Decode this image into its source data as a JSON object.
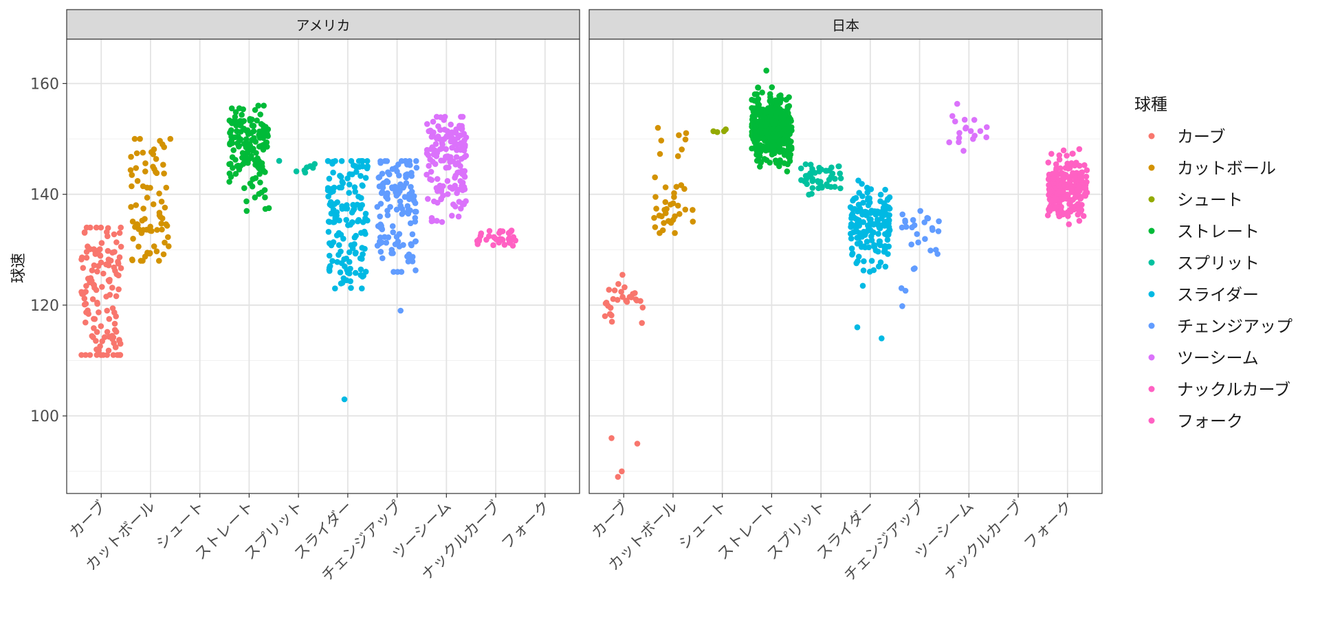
{
  "chart_data": {
    "type": "scatter",
    "ylabel": "球速",
    "xlabel": "",
    "ylim": [
      86,
      168
    ],
    "yticks": [
      100,
      120,
      140,
      160
    ],
    "categories": [
      "カーブ",
      "カットボール",
      "シュート",
      "ストレート",
      "スプリット",
      "スライダー",
      "チェンジアップ",
      "ツーシーム",
      "ナックルカーブ",
      "フォーク"
    ],
    "legend": {
      "title": "球種",
      "placement": "right",
      "items": [
        {
          "name": "カーブ",
          "color": "#F8766D"
        },
        {
          "name": "カットボール",
          "color": "#D39200"
        },
        {
          "name": "シュート",
          "color": "#93AA00"
        },
        {
          "name": "ストレート",
          "color": "#00BA38"
        },
        {
          "name": "スプリット",
          "color": "#00C19F"
        },
        {
          "name": "スライダー",
          "color": "#00B9E3"
        },
        {
          "name": "チェンジアップ",
          "color": "#619CFF"
        },
        {
          "name": "ツーシーム",
          "color": "#DB72FB"
        },
        {
          "name": "ナックルカーブ",
          "color": "#FF61C3"
        },
        {
          "name": "フォーク",
          "color": "#FF61C3"
        }
      ]
    },
    "grid": true,
    "panels": [
      {
        "title": "アメリカ",
        "series": [
          {
            "name": "カーブ",
            "n": 130,
            "ranges": [
              [
                111,
                134
              ]
            ],
            "clusters": [
              [
                114,
                0.35
              ],
              [
                123,
                0.3
              ],
              [
                130,
                0.35
              ]
            ]
          },
          {
            "name": "カットボール",
            "n": 80,
            "ranges": [
              [
                128,
                150
              ]
            ],
            "clusters": [
              [
                132,
                0.45
              ],
              [
                145,
                0.4
              ],
              [
                137,
                0.15
              ]
            ]
          },
          {
            "name": "シュート",
            "n": 0,
            "ranges": []
          },
          {
            "name": "ストレート",
            "n": 150,
            "ranges": [
              [
                137,
                156
              ]
            ],
            "clusters": [
              [
                150,
                0.75
              ],
              [
                145,
                0.2
              ],
              [
                138,
                0.05
              ]
            ]
          },
          {
            "name": "スプリット",
            "n": 8,
            "ranges": [
              [
                143,
                148
              ]
            ],
            "clusters": [
              [
                145,
                1.0
              ]
            ]
          },
          {
            "name": "スライダー",
            "n": 150,
            "ranges": [
              [
                123,
                146
              ]
            ],
            "clusters": [
              [
                127,
                0.3
              ],
              [
                137,
                0.45
              ],
              [
                143,
                0.25
              ]
            ],
            "outliers": [
              103
            ]
          },
          {
            "name": "チェンジアップ",
            "n": 130,
            "ranges": [
              [
                126,
                146
              ]
            ],
            "clusters": [
              [
                130,
                0.3
              ],
              [
                137,
                0.4
              ],
              [
                143,
                0.3
              ]
            ],
            "outliers": [
              119
            ]
          },
          {
            "name": "ツーシーム",
            "n": 150,
            "ranges": [
              [
                135,
                154
              ]
            ],
            "clusters": [
              [
                140,
                0.3
              ],
              [
                149,
                0.7
              ]
            ]
          },
          {
            "name": "ナックルカーブ",
            "n": 35,
            "ranges": [
              [
                129,
                135
              ]
            ],
            "clusters": [
              [
                132,
                1.0
              ]
            ]
          },
          {
            "name": "フォーク",
            "n": 0,
            "ranges": []
          }
        ]
      },
      {
        "title": "日本",
        "series": [
          {
            "name": "カーブ",
            "n": 28,
            "ranges": [
              [
                115,
                130
              ]
            ],
            "clusters": [
              [
                121,
                1.0
              ]
            ],
            "outliers": [
              89,
              90,
              95,
              96
            ]
          },
          {
            "name": "カットボール",
            "n": 40,
            "ranges": [
              [
                133,
                152
              ]
            ],
            "clusters": [
              [
                137,
                0.85
              ],
              [
                148,
                0.15
              ]
            ]
          },
          {
            "name": "シュート",
            "n": 4,
            "ranges": [
              [
                150,
                153
              ]
            ],
            "clusters": [
              [
                151.5,
                1.0
              ]
            ]
          },
          {
            "name": "ストレート",
            "n": 420,
            "ranges": [
              [
                143,
                164
              ]
            ],
            "clusters": [
              [
                152,
                1.0
              ]
            ]
          },
          {
            "name": "スプリット",
            "n": 45,
            "ranges": [
              [
                139,
                148
              ]
            ],
            "clusters": [
              [
                143,
                1.0
              ]
            ]
          },
          {
            "name": "スライダー",
            "n": 170,
            "ranges": [
              [
                119,
                144
              ]
            ],
            "clusters": [
              [
                134,
                1.0
              ]
            ],
            "outliers": [
              114,
              116
            ]
          },
          {
            "name": "チェンジアップ",
            "n": 28,
            "ranges": [
              [
                115,
                137
              ]
            ],
            "clusters": [
              [
                134.5,
                0.6
              ],
              [
                125,
                0.4
              ]
            ]
          },
          {
            "name": "ツーシーム",
            "n": 18,
            "ranges": [
              [
                146,
                160
              ]
            ],
            "clusters": [
              [
                152,
                1.0
              ]
            ]
          },
          {
            "name": "ナックルカーブ",
            "n": 0,
            "ranges": []
          },
          {
            "name": "フォーク",
            "n": 230,
            "ranges": [
              [
                132,
                150
              ]
            ],
            "clusters": [
              [
                141,
                1.0
              ]
            ]
          }
        ]
      }
    ]
  }
}
